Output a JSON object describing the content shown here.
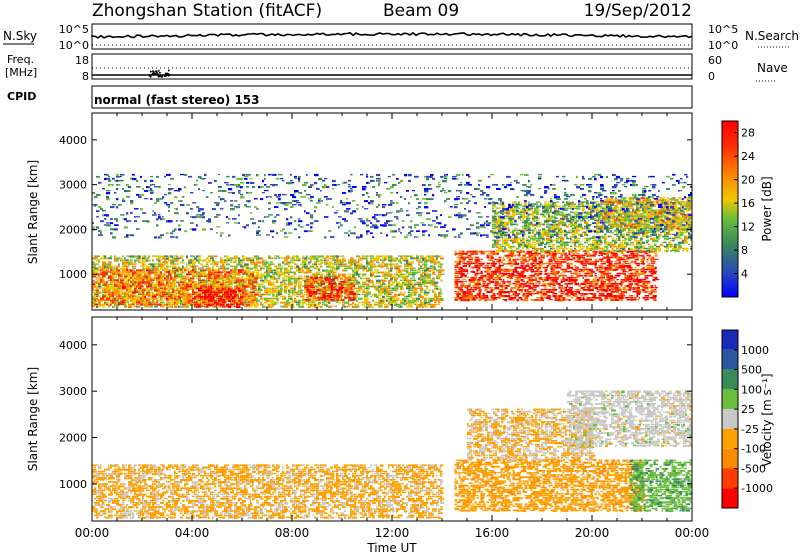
{
  "header": {
    "station": "Zhongshan Station (fitACF)",
    "beam": "Beam 09",
    "date": "19/Sep/2012"
  },
  "top_panels": {
    "nsky_label": "N.Sky",
    "nsearch_label": "N.Search",
    "nsky_ticks": [
      "10^5",
      "10^0"
    ],
    "nsearch_ticks": [
      "10^5",
      "10^0"
    ],
    "freq_label": "Freq.",
    "freq_unit": "[MHz]",
    "freq_ticks": [
      "18",
      "8"
    ],
    "nave_label": "Nave",
    "nave_ticks": [
      "60",
      "0"
    ],
    "cpid_label": "CPID",
    "cpid_text": "normal (fast stereo) 153"
  },
  "colors": {
    "power_scale": [
      "#0000ff",
      "#2848b8",
      "#3a8a5a",
      "#6abf3a",
      "#f0c800",
      "#ff8c00",
      "#ff3000",
      "#ff0000"
    ],
    "velocity_scale": [
      "#ff0000",
      "#ff3c00",
      "#ff8c00",
      "#ffa000",
      "#c8c8c8",
      "#6abf3a",
      "#3a8a5a",
      "#2858a0",
      "#1a2ab8"
    ]
  },
  "chart_data": [
    {
      "type": "heatmap",
      "title": "",
      "ylabel": "Slant Range [km]",
      "xlabel": "",
      "xlim": [
        "00:00",
        "00:00"
      ],
      "ylim": [
        200,
        4600
      ],
      "y_ticks": [
        1000,
        2000,
        3000,
        4000
      ],
      "colorbar": {
        "label": "Power [dB]",
        "ticks": [
          "4",
          "8",
          "12",
          "16",
          "20",
          "24",
          "28"
        ],
        "range": [
          0,
          30
        ]
      },
      "regions": [
        {
          "t_start": 0.0,
          "t_end": 14.0,
          "r_min": 250,
          "r_max": 1400,
          "value": 16
        },
        {
          "t_start": 0.0,
          "t_end": 6.5,
          "r_min": 300,
          "r_max": 1100,
          "value": 22
        },
        {
          "t_start": 4.0,
          "t_end": 6.0,
          "r_min": 250,
          "r_max": 700,
          "value": 28
        },
        {
          "t_start": 8.5,
          "t_end": 10.5,
          "r_min": 400,
          "r_max": 900,
          "value": 26
        },
        {
          "t_start": 14.5,
          "t_end": 22.5,
          "r_min": 400,
          "r_max": 1500,
          "value": 27
        },
        {
          "t_start": 16.0,
          "t_end": 24.0,
          "r_min": 1500,
          "r_max": 2600,
          "value": 14
        },
        {
          "t_start": 20.5,
          "t_end": 24.0,
          "r_min": 2000,
          "r_max": 2700,
          "value": 18
        },
        {
          "t_start": 0.0,
          "t_end": 24.0,
          "r_min": 1800,
          "r_max": 3200,
          "value": 6
        }
      ]
    },
    {
      "type": "heatmap",
      "title": "",
      "ylabel": "Slant Range [km]",
      "xlabel": "Time UT",
      "xlim": [
        "00:00",
        "00:00"
      ],
      "x_ticks": [
        "00:00",
        "04:00",
        "08:00",
        "12:00",
        "16:00",
        "20:00",
        "00:00"
      ],
      "ylim": [
        200,
        4600
      ],
      "y_ticks": [
        1000,
        2000,
        3000,
        4000
      ],
      "colorbar": {
        "label": "Velocity [m s⁻¹]",
        "ticks": [
          "1000",
          "500",
          "100",
          "25",
          "-25",
          "-100",
          "-500",
          "-1000"
        ],
        "range": [
          -1000,
          1000
        ]
      },
      "regions": [
        {
          "t_start": 0.0,
          "t_end": 14.0,
          "r_min": 250,
          "r_max": 1400,
          "value": -200
        },
        {
          "t_start": 14.5,
          "t_end": 22.0,
          "r_min": 400,
          "r_max": 1500,
          "value": -300
        },
        {
          "t_start": 15.0,
          "t_end": 20.0,
          "r_min": 1500,
          "r_max": 2600,
          "value": -150
        },
        {
          "t_start": 19.0,
          "t_end": 24.0,
          "r_min": 1800,
          "r_max": 3000,
          "value": 0
        },
        {
          "t_start": 21.5,
          "t_end": 24.0,
          "r_min": 400,
          "r_max": 1500,
          "value": 300
        }
      ]
    }
  ]
}
